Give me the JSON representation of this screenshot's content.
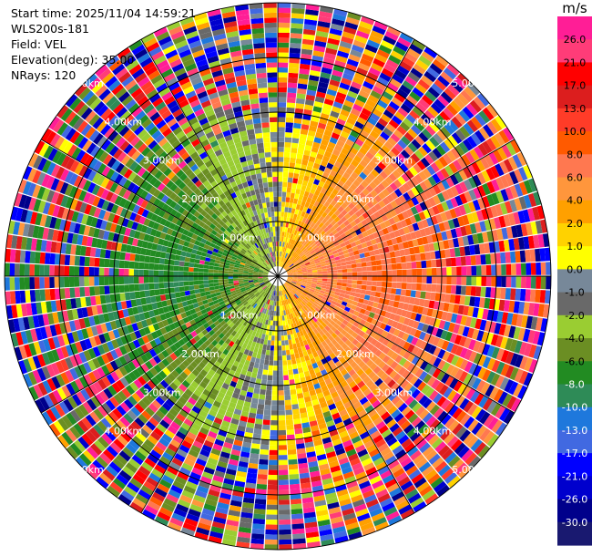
{
  "meta": {
    "start_time": "Start time: 2025/11/04 14:59:21",
    "instrument": "WLS200s-181",
    "field": "Field: VEL",
    "elevation": "Elevation(deg): 35.00",
    "nrays": "NRays: 120"
  },
  "colorbar": {
    "unit": "m/s",
    "ticks": [
      "26.0",
      "21.0",
      "17.0",
      "13.0",
      "10.0",
      "8.0",
      "6.0",
      "4.0",
      "2.0",
      "1.0",
      "0.0",
      "-1.0",
      "-2.0",
      "-4.0",
      "-6.0",
      "-8.0",
      "-10.0",
      "-13.0",
      "-17.0",
      "-21.0",
      "-26.0",
      "-30.0"
    ],
    "colors": [
      "#ff1e96",
      "#ff3c78",
      "#ff0000",
      "#dc1e1e",
      "#ff3c28",
      "#ff5a00",
      "#ff7850",
      "#ff963c",
      "#ffa000",
      "#ffd200",
      "#ffff00",
      "#778899",
      "#696969",
      "#9acd32",
      "#6b8e23",
      "#228b22",
      "#2e8b57",
      "#1e78dc",
      "#4169e1",
      "#0000ff",
      "#0000cd",
      "#00008b",
      "#191970"
    ]
  },
  "chart_data": {
    "type": "heatmap",
    "projection": "polar PPI",
    "field": "VEL",
    "units": "m/s",
    "nrays": 120,
    "range_rings_km": [
      1.0,
      2.0,
      3.0,
      4.0,
      5.0
    ],
    "ring_labels": [
      "1.00km",
      "2.00km",
      "3.00km",
      "4.00km",
      "5.00km"
    ],
    "max_range_km": 5.0,
    "color_limits": [
      -30.0,
      30.0
    ],
    "pattern": "positive velocities (yellow/orange, up to ~10 m/s) on the east side, negative velocities (greens, down to ~-8 m/s) on the west side, grey near-zero toward north/south; beyond ~3 km the returns are noisy with all colours"
  }
}
